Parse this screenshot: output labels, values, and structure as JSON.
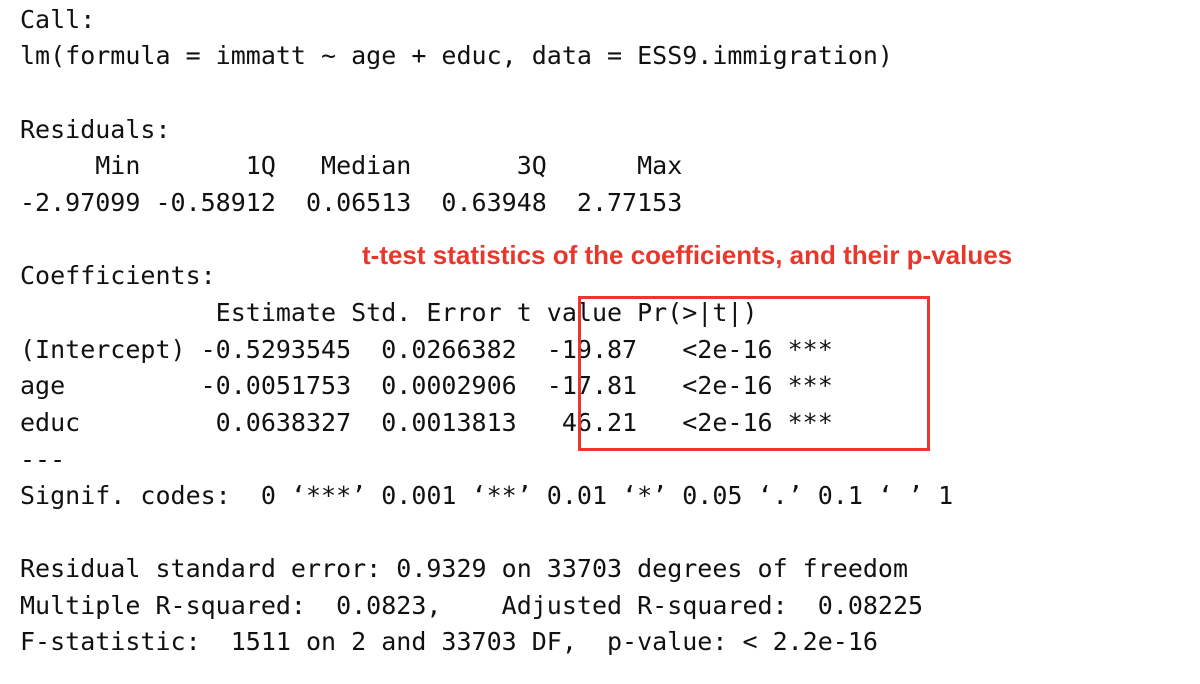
{
  "accent_color": "#e8372c",
  "output": {
    "call_header": "Call:",
    "call_formula": "lm(formula = immatt ~ age + educ, data = ESS9.immigration)",
    "residuals_header": "Residuals:",
    "residuals_labels": "     Min       1Q   Median       3Q      Max ",
    "residuals_values": "-2.97099 -0.58912  0.06513  0.63948  2.77153 ",
    "coefficients_header": "Coefficients:",
    "coef_col_headers": "             Estimate Std. Error t value Pr(>|t|)    ",
    "coef_rows": [
      "(Intercept) -0.5293545  0.0266382  -19.87   <2e-16 ***",
      "age         -0.0051753  0.0002906  -17.81   <2e-16 ***",
      "educ         0.0638327  0.0013813   46.21   <2e-16 ***"
    ],
    "separator": "---",
    "signif_codes": "Signif. codes:  0 ‘***’ 0.001 ‘**’ 0.01 ‘*’ 0.05 ‘.’ 0.1 ‘ ’ 1",
    "residual_se": "Residual standard error: 0.9329 on 33703 degrees of freedom",
    "r_squared": "Multiple R-squared:  0.0823,\tAdjusted R-squared:  0.08225 ",
    "f_statistic": "F-statistic:  1511 on 2 and 33703 DF,  p-value: < 2.2e-16"
  },
  "annotation": {
    "text": "t-test statistics of the coefficients, and their p-values"
  }
}
